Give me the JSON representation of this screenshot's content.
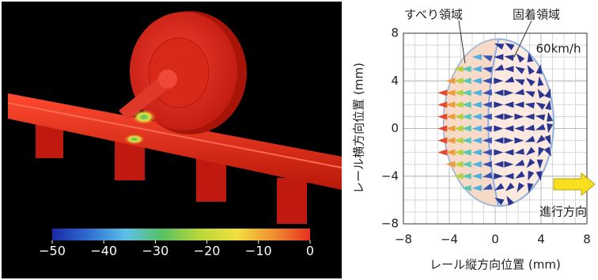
{
  "chart_data": [
    {
      "type": "colorbar",
      "colors": [
        "#1a2aa8",
        "#2f6fd0",
        "#5cc0e8",
        "#58c060",
        "#b8d838",
        "#f0e040",
        "#f09030",
        "#e83020"
      ],
      "xlim": [
        -50,
        0
      ],
      "xticks": [
        {
          "value": -50,
          "label": "−50"
        },
        {
          "value": -40,
          "label": "−40"
        },
        {
          "value": -30,
          "label": "−30"
        },
        {
          "value": -20,
          "label": "−20"
        },
        {
          "value": -10,
          "label": "−10"
        },
        0
      ]
    },
    {
      "type": "quiver",
      "xlabel": "レール縦方向位置 (mm)",
      "ylabel": "レール横方向位置 (mm)",
      "annotations": [
        "すべり領域",
        "固着領域",
        "60km/h",
        "進行方向"
      ],
      "xlim": [
        -8,
        8
      ],
      "ylim": [
        -8,
        8
      ],
      "xticks": [
        {
          "value": -8,
          "label": "−8"
        },
        {
          "value": -4,
          "label": "−4"
        },
        0,
        4,
        8
      ],
      "yticks": [
        {
          "value": -8,
          "label": "−8"
        },
        {
          "value": -4,
          "label": "−4"
        },
        0,
        4,
        8
      ],
      "minor_grid_step": 1,
      "grid": true,
      "contact_patch": {
        "center": [
          0.3,
          0.5
        ],
        "radii": [
          4.8,
          7
        ]
      },
      "slip_boundary_x": -1.2,
      "columns": [
        {
          "x": -4.6,
          "color": "#e8452a",
          "y": [
            -2,
            -1,
            0,
            1,
            2,
            3
          ],
          "angle": [
            180,
            180,
            180,
            180,
            180,
            180
          ]
        },
        {
          "x": -3.9,
          "color": "#f09a40",
          "y": [
            -3,
            -2,
            -1,
            0,
            1,
            2,
            3,
            4
          ],
          "angle": [
            180,
            180,
            180,
            180,
            180,
            180,
            180,
            180
          ]
        },
        {
          "x": -3.2,
          "color": "#b8d040",
          "y": [
            -4,
            -3,
            -2,
            -1,
            0,
            1,
            2,
            3,
            4,
            5
          ],
          "angle": [
            180,
            180,
            180,
            180,
            180,
            180,
            180,
            180,
            180,
            180
          ]
        },
        {
          "x": -2.5,
          "color": "#58c8b0",
          "y": [
            -5,
            -4,
            -3,
            -2,
            -1,
            0,
            1,
            2,
            3,
            4,
            5
          ],
          "angle": [
            180,
            180,
            180,
            180,
            180,
            180,
            180,
            180,
            180,
            180,
            180
          ]
        },
        {
          "x": -1.6,
          "color": "#50b0e0",
          "y": [
            -5,
            -4,
            -3,
            -2,
            -1,
            0,
            1,
            2,
            3,
            4,
            5,
            6
          ],
          "angle": [
            180,
            180,
            180,
            180,
            180,
            180,
            180,
            180,
            180,
            180,
            180,
            180
          ]
        },
        {
          "x": -0.7,
          "color": "#3a50b0",
          "y": [
            -5,
            -4,
            -3,
            -2,
            -1,
            0,
            1,
            2,
            3,
            4,
            5,
            6
          ],
          "angle": [
            200,
            190,
            180,
            180,
            180,
            175,
            180,
            180,
            185,
            180,
            170,
            160
          ]
        },
        {
          "x": 0.3,
          "color": "#2a3590",
          "y": [
            -6,
            -5,
            -4,
            -3,
            -2,
            -1,
            0,
            1,
            2,
            3,
            4,
            5,
            6,
            7
          ],
          "angle": [
            150,
            210,
            0,
            180,
            0,
            180,
            0,
            180,
            0,
            180,
            0,
            200,
            180,
            160
          ]
        },
        {
          "x": 1.2,
          "color": "#2a3590",
          "y": [
            -6,
            -5,
            -4,
            -3,
            -2,
            -1,
            0,
            1,
            2,
            3,
            4,
            5,
            6,
            7
          ],
          "angle": [
            120,
            220,
            180,
            0,
            180,
            0,
            180,
            0,
            180,
            0,
            200,
            180,
            170,
            150
          ]
        },
        {
          "x": 2.1,
          "color": "#2a3590",
          "y": [
            -5,
            -4,
            -3,
            -2,
            -1,
            0,
            1,
            2,
            3,
            4,
            5,
            6
          ],
          "angle": [
            240,
            210,
            200,
            190,
            0,
            180,
            0,
            180,
            190,
            160,
            150,
            130
          ]
        },
        {
          "x": 3.0,
          "color": "#2a3590",
          "y": [
            -5,
            -4,
            -3,
            -2,
            -1,
            0,
            1,
            2,
            3,
            4,
            5,
            6
          ],
          "angle": [
            260,
            250,
            230,
            220,
            200,
            190,
            180,
            170,
            160,
            140,
            120,
            100
          ]
        },
        {
          "x": 3.9,
          "color": "#2a3590",
          "y": [
            -4,
            -3,
            -2,
            -1,
            0,
            1,
            2,
            3,
            4,
            5
          ],
          "angle": [
            280,
            270,
            250,
            220,
            200,
            170,
            150,
            120,
            100,
            80
          ]
        },
        {
          "x": 4.7,
          "color": "#2a3590",
          "y": [
            -2,
            -1,
            0,
            1,
            2,
            3
          ],
          "angle": [
            300,
            290,
            260,
            100,
            80,
            70
          ]
        }
      ]
    }
  ]
}
